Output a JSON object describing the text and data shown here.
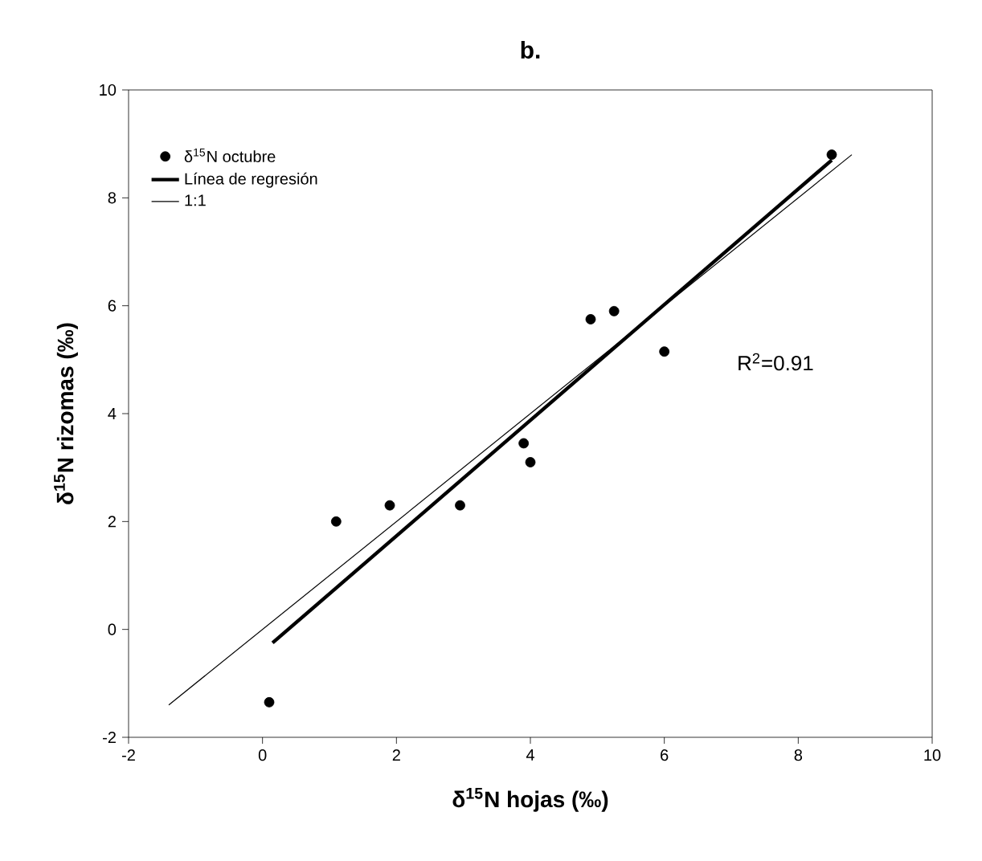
{
  "chart_data": {
    "type": "scatter",
    "title": "b.",
    "xlabel": "δ$^{15}$N hojas (‰)",
    "ylabel": "δ$^{15}$N rizomas (‰)",
    "xlim": [
      -2,
      10
    ],
    "ylim": [
      -2,
      10
    ],
    "xticks": [
      -2,
      0,
      2,
      4,
      6,
      8,
      10
    ],
    "yticks": [
      -2,
      0,
      2,
      4,
      6,
      8,
      10
    ],
    "grid": false,
    "legend": "top left",
    "annotations": [
      "R$^{2}$=0.91"
    ],
    "series": [
      {
        "name": "δ$^{15}$N octubre",
        "color": "#000000",
        "marker": "circle",
        "x": [
          0.1,
          1.1,
          1.9,
          2.95,
          3.9,
          4.0,
          4.9,
          5.25,
          6.0,
          8.5
        ],
        "values": [
          -1.35,
          2.0,
          2.3,
          2.3,
          3.45,
          3.1,
          5.75,
          5.9,
          5.15,
          8.8
        ]
      },
      {
        "name": "Línea de regresión",
        "type": "line",
        "color": "#000000",
        "marker": "none",
        "line_style": "solid",
        "x": [
          0.15,
          8.5
        ],
        "values": [
          -0.25,
          8.7
        ]
      },
      {
        "name": "1:1",
        "type": "line",
        "color": "#000000",
        "marker": "none",
        "line_style": "solid",
        "x": [
          -1.4,
          8.8
        ],
        "values": [
          -1.4,
          8.8
        ]
      }
    ]
  }
}
